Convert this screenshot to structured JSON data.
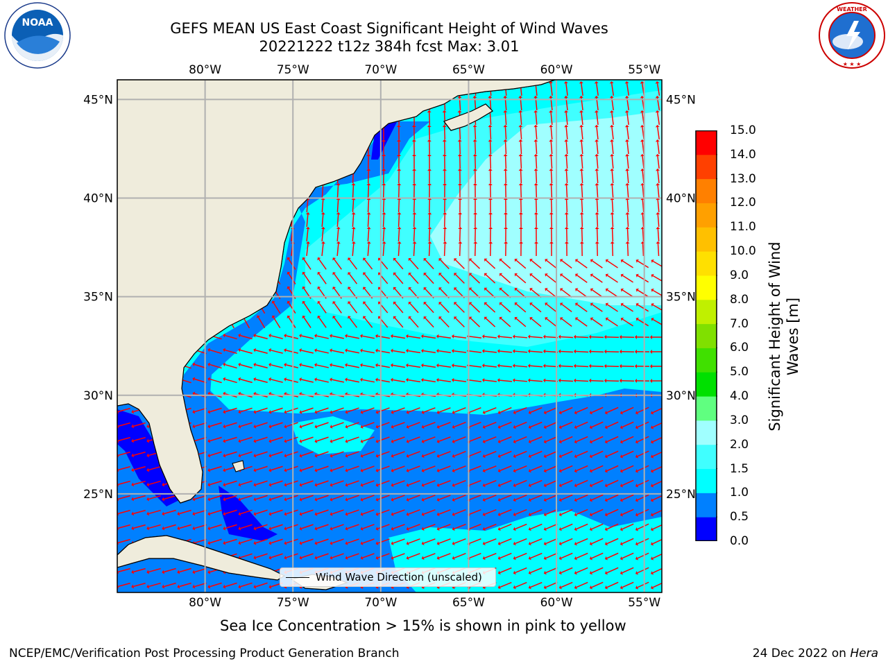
{
  "title": {
    "line1": "GEFS MEAN US East Coast Significant Height of Wind Waves",
    "line2": "20221222 t12z 384h fcst   Max: 3.01"
  },
  "map": {
    "lon_range": [
      -85,
      -54
    ],
    "lat_range": [
      20,
      46
    ],
    "top_lon_labels": [
      "80°W",
      "75°W",
      "70°W",
      "65°W",
      "60°W",
      "55°W"
    ],
    "bottom_lon_labels": [
      "80°W",
      "75°W",
      "70°W",
      "65°W",
      "60°W",
      "55°W"
    ],
    "left_lat_labels": [
      "45°N",
      "40°N",
      "35°N",
      "30°N",
      "25°N"
    ],
    "right_lat_labels": [
      "45°N",
      "40°N",
      "35°N",
      "30°N",
      "25°N"
    ],
    "legend_label": "Wind Wave Direction (unscaled)",
    "arrow_color": "#ff0000",
    "land_color": "#efecdc",
    "grid_color": "#b0b0b0"
  },
  "colorbar": {
    "label": "Significant Height of Wind Waves [m]",
    "ticks": [
      "0.0",
      "0.5",
      "1.0",
      "1.5",
      "2.0",
      "3.0",
      "4.0",
      "5.0",
      "6.0",
      "7.0",
      "8.0",
      "9.0",
      "10.0",
      "11.0",
      "12.0",
      "13.0",
      "14.0",
      "15.0"
    ],
    "colors": [
      "#0000ff",
      "#0080ff",
      "#00ffff",
      "#40ffff",
      "#a0ffff",
      "#60ff80",
      "#00e000",
      "#40e000",
      "#80e000",
      "#c0f000",
      "#ffff00",
      "#ffe000",
      "#ffc000",
      "#ffa000",
      "#ff8000",
      "#ff4000",
      "#ff0000"
    ]
  },
  "footnote": "Sea Ice Concentration > 15% is shown in pink to yellow",
  "footer": {
    "left": "NCEP/EMC/Verification Post Processing Product Generation Branch",
    "right_date": "24 Dec 2022 on ",
    "right_host": "Hera"
  },
  "logos": {
    "left": "NOAA",
    "right": "NATIONAL WEATHER SERVICE"
  }
}
